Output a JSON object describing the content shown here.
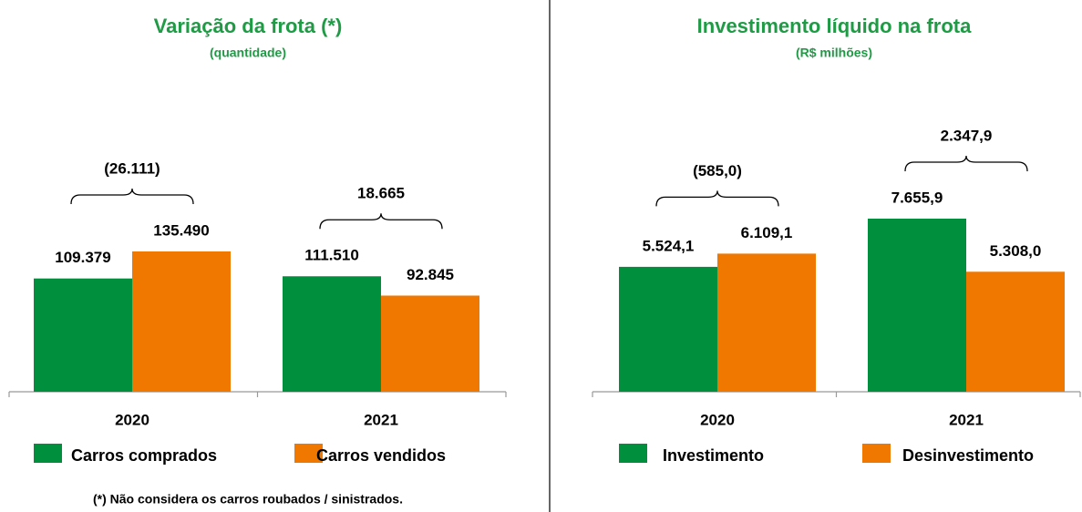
{
  "chart_data": [
    {
      "type": "bar",
      "title": "Variação da frota (*)",
      "subtitle": "(quantidade)",
      "categories": [
        "2020",
        "2021"
      ],
      "series": [
        {
          "name": "Carros comprados",
          "color": "#00903d",
          "values": [
            109379,
            111510
          ],
          "value_labels": [
            "109.379",
            "111.510"
          ]
        },
        {
          "name": "Carros vendidos",
          "color": "#f07800",
          "values": [
            135490,
            92845
          ],
          "value_labels": [
            "135.490",
            "92.845"
          ]
        }
      ],
      "annotations": [
        "(26.111)",
        "18.665"
      ],
      "footnote": "(*) Não considera os carros roubados  / sinistrados."
    },
    {
      "type": "bar",
      "title": "Investimento líquido na frota",
      "subtitle": "(R$ milhões)",
      "categories": [
        "2020",
        "2021"
      ],
      "series": [
        {
          "name": "Investimento",
          "color": "#00903d",
          "values": [
            5524.1,
            7655.9
          ],
          "value_labels": [
            "5.524,1",
            "7.655,9"
          ]
        },
        {
          "name": "Desinvestimento",
          "color": "#f07800",
          "values": [
            6109.1,
            5308.0
          ],
          "value_labels": [
            "6.109,1",
            "5.308,0"
          ]
        }
      ],
      "annotations": [
        "(585,0)",
        "2.347,9"
      ]
    }
  ]
}
